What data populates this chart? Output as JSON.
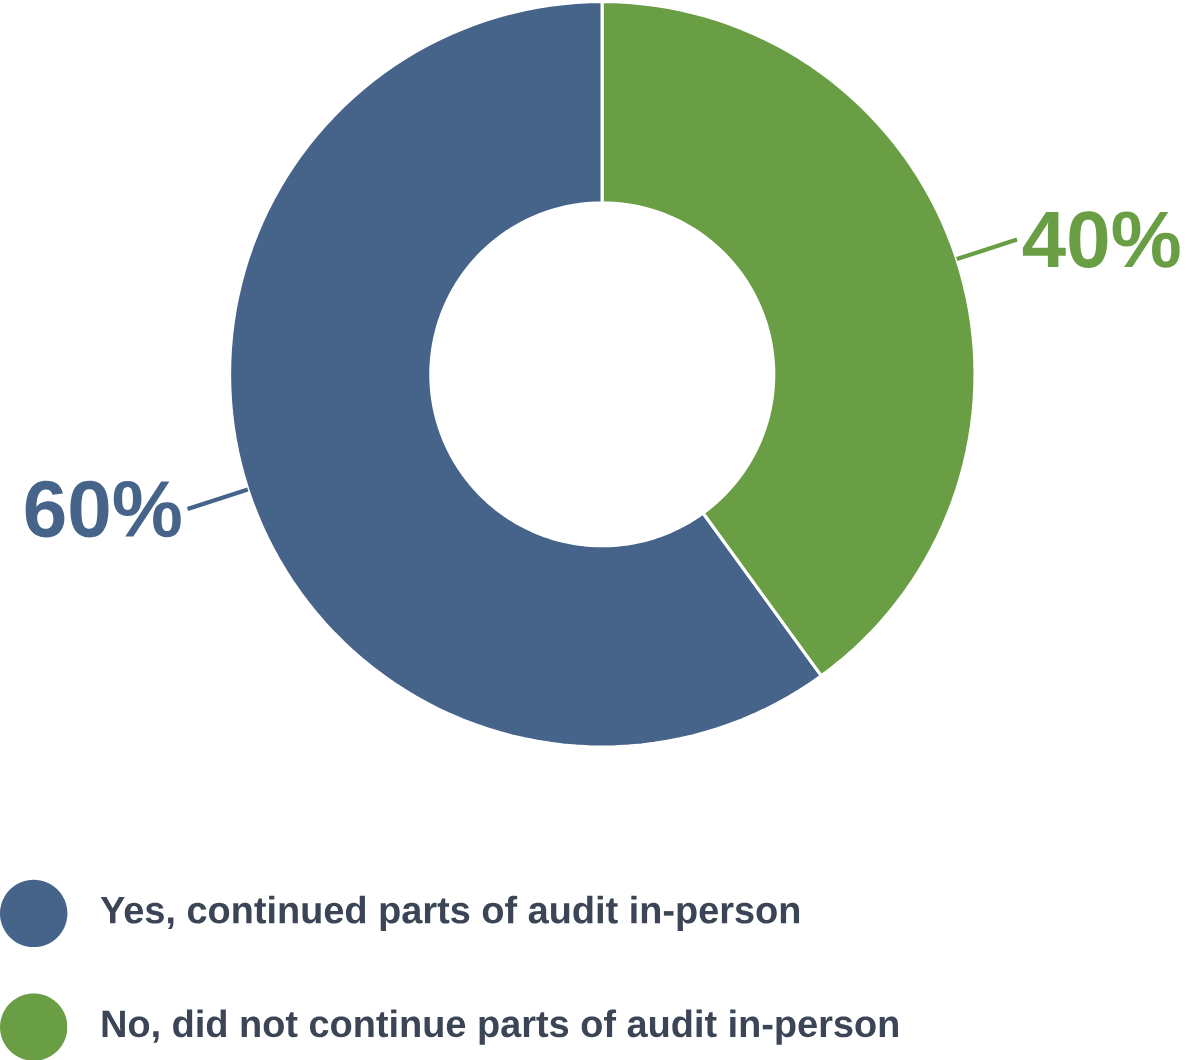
{
  "chart_data": {
    "type": "donut",
    "categories": [
      "Yes, continued parts of audit in-person",
      "No, did not continue parts of audit in-person"
    ],
    "values": [
      60,
      40
    ],
    "colors": [
      "#46648a",
      "#6a9e45"
    ],
    "value_labels": [
      "60%",
      "40%"
    ],
    "legend": "bottom"
  }
}
